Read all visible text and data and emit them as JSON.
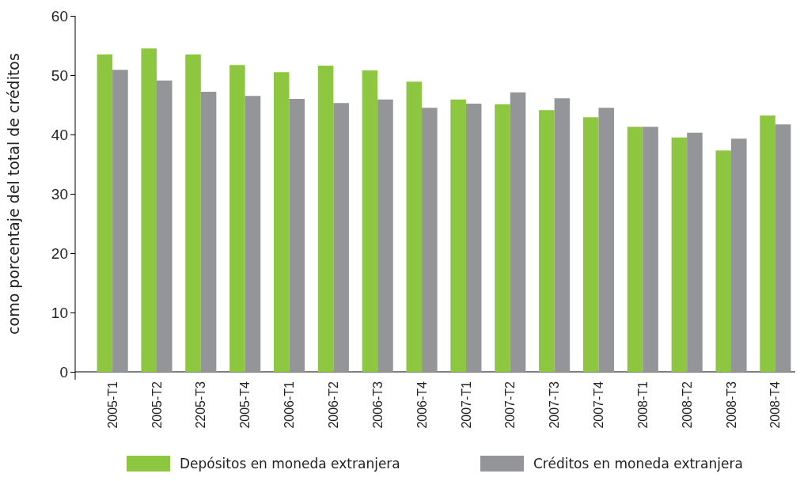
{
  "chart_data": {
    "type": "bar",
    "ylabel": "como porcentaje del total de créditos",
    "categories": [
      "2005-T1",
      "2005-T2",
      "2205-T3",
      "2005-T4",
      "2006-T1",
      "2006-T2",
      "2006-T3",
      "2006-T4",
      "2007-T1",
      "2007-T2",
      "2007-T3",
      "2007-T4",
      "2008-T1",
      "2008-T2",
      "2008-T3",
      "2008-T4"
    ],
    "series": [
      {
        "name": "Depósitos en moneda extranjera",
        "color": "#8dc63f",
        "values": [
          53.5,
          54.5,
          53.5,
          51.7,
          50.5,
          51.6,
          50.8,
          48.9,
          45.9,
          45.1,
          44.1,
          42.9,
          41.3,
          39.5,
          37.3,
          43.2
        ]
      },
      {
        "name": "Créditos en moneda extranjera",
        "color": "#939598",
        "values": [
          50.9,
          49.1,
          47.2,
          46.5,
          46,
          45.3,
          45.9,
          44.5,
          45.2,
          47.1,
          46.1,
          44.5,
          41.3,
          40.3,
          39.3,
          41.7
        ]
      }
    ],
    "ylim": [
      0,
      60
    ],
    "yticks": [
      0,
      10,
      20,
      30,
      40,
      50,
      60
    ],
    "legend": "bottom"
  }
}
